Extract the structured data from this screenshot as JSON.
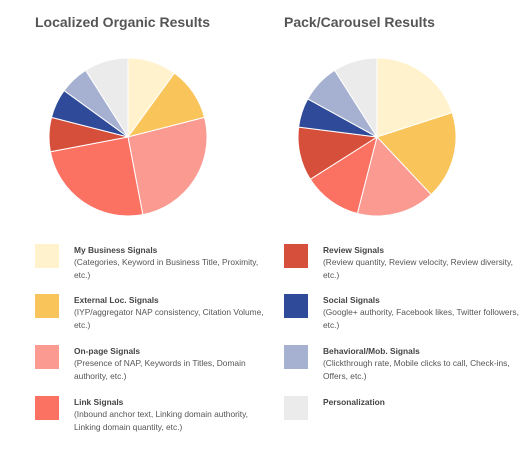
{
  "chart_data": [
    {
      "type": "pie",
      "title": "Localized Organic Results",
      "slices": [
        {
          "name": "My Business Signals",
          "value": 10,
          "color": "#FFF2CC"
        },
        {
          "name": "External Loc. Signals",
          "value": 11,
          "color": "#F9C55A"
        },
        {
          "name": "On-page Signals",
          "value": 26,
          "color": "#FA9A91"
        },
        {
          "name": "Link Signals",
          "value": 25,
          "color": "#FB7263"
        },
        {
          "name": "Review Signals",
          "value": 7,
          "color": "#D64F3A"
        },
        {
          "name": "Social Signals",
          "value": 6,
          "color": "#2E4A98"
        },
        {
          "name": "Behavioral/Mob. Signals",
          "value": 6,
          "color": "#A6B0D0"
        },
        {
          "name": "Personalization",
          "value": 9,
          "color": "#EBEBEB"
        }
      ]
    },
    {
      "type": "pie",
      "title": "Pack/Carousel Results",
      "slices": [
        {
          "name": "My Business Signals",
          "value": 20,
          "color": "#FFF2CC"
        },
        {
          "name": "External Loc. Signals",
          "value": 18,
          "color": "#F9C55A"
        },
        {
          "name": "On-page Signals",
          "value": 16,
          "color": "#FA9A91"
        },
        {
          "name": "Link Signals",
          "value": 12,
          "color": "#FB7263"
        },
        {
          "name": "Review Signals",
          "value": 11,
          "color": "#D64F3A"
        },
        {
          "name": "Social Signals",
          "value": 6,
          "color": "#2E4A98"
        },
        {
          "name": "Behavioral/Mob. Signals",
          "value": 8,
          "color": "#A6B0D0"
        },
        {
          "name": "Personalization",
          "value": 9,
          "color": "#EBEBEB"
        }
      ]
    }
  ],
  "legend": [
    {
      "label": "My Business Signals",
      "desc": "(Categories, Keyword in Business Title, Proximity, etc.)",
      "color": "#FFF2CC"
    },
    {
      "label": "External Loc. Signals",
      "desc": "(IYP/aggregator NAP consistency, Citation Volume, etc.)",
      "color": "#F9C55A"
    },
    {
      "label": "On-page Signals",
      "desc": "(Presence of NAP, Keywords in Titles, Domain authority, etc.)",
      "color": "#FA9A91"
    },
    {
      "label": "Link Signals",
      "desc": "(Inbound anchor text, Linking domain authority, Linking domain quantity, etc.)",
      "color": "#FB7263"
    },
    {
      "label": "Review Signals",
      "desc": "(Review quantity, Review velocity, Review diversity, etc.)",
      "color": "#D64F3A"
    },
    {
      "label": "Social Signals",
      "desc": "(Google+ authority, Facebook likes, Twitter followers, etc.)",
      "color": "#2E4A98"
    },
    {
      "label": "Behavioral/Mob. Signals",
      "desc": "(Clickthrough rate, Mobile clicks to call, Check-ins, Offers, etc.)",
      "color": "#A6B0D0"
    },
    {
      "label": "Personalization",
      "desc": "",
      "color": "#EBEBEB"
    }
  ]
}
